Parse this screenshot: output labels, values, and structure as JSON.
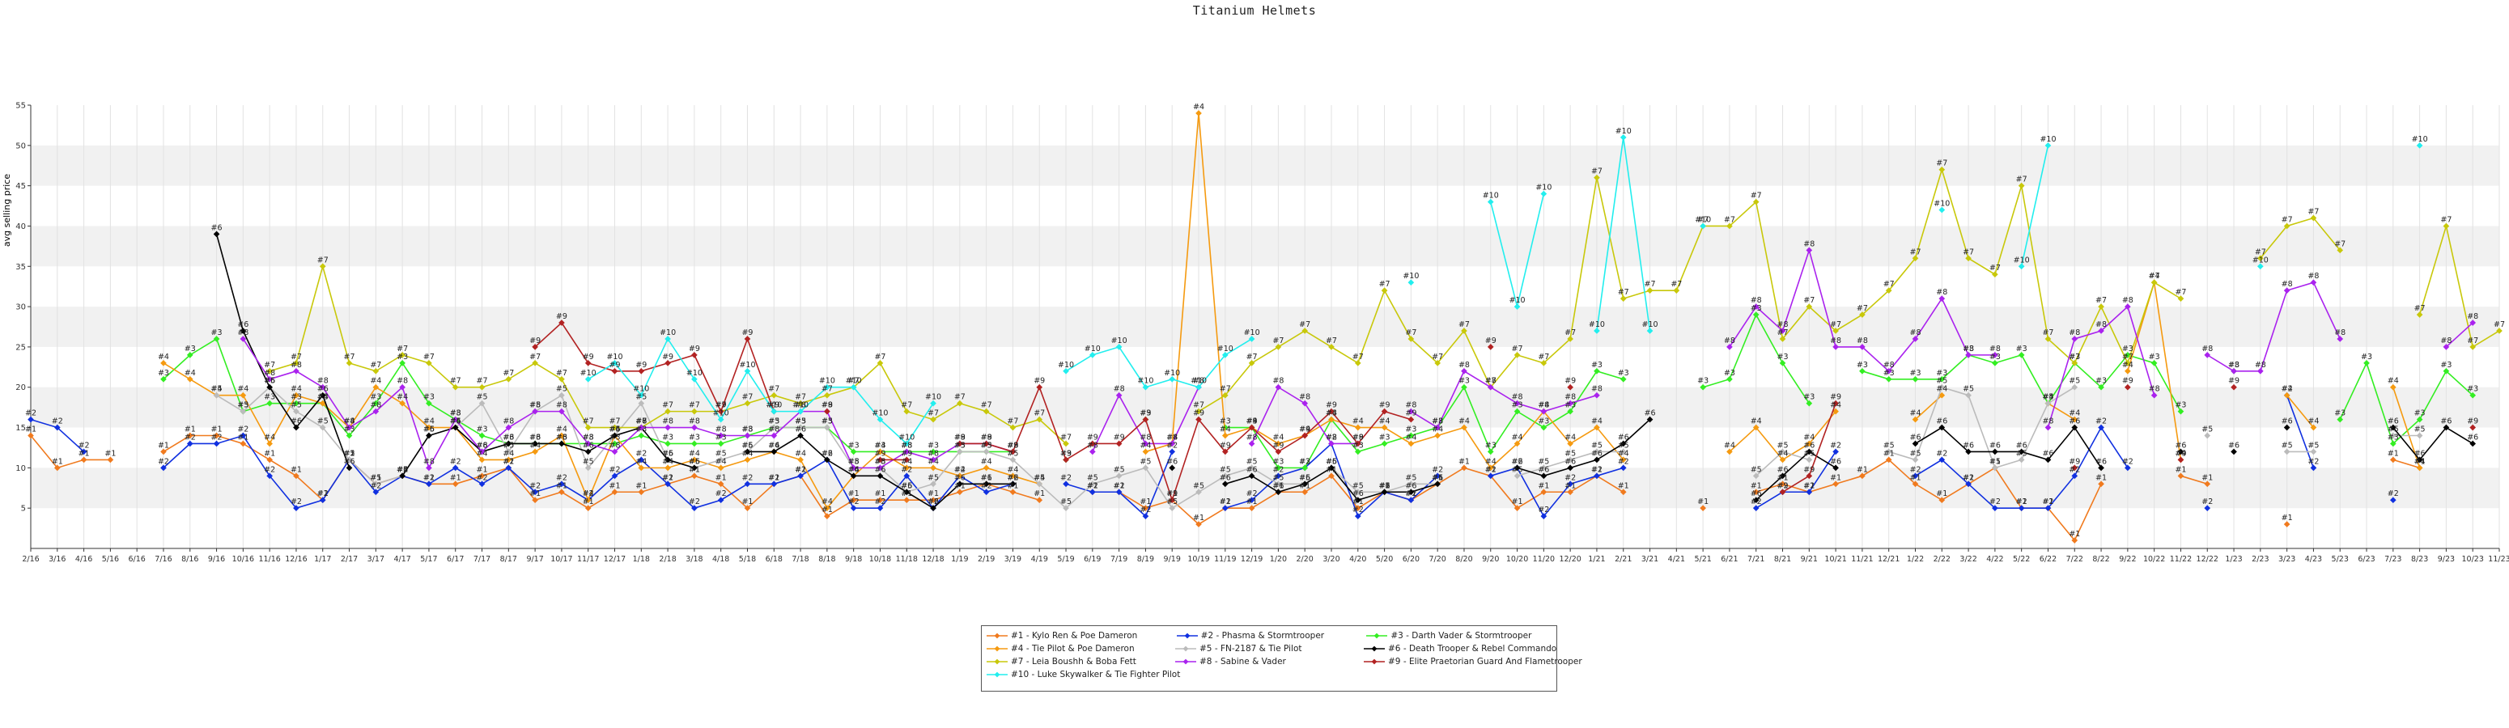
{
  "chart_data": {
    "type": "line",
    "title": "Titanium Helmets",
    "xlabel": "",
    "ylabel": "avg selling price",
    "ylim": [
      0,
      55
    ],
    "yticks": [
      5,
      10,
      15,
      20,
      25,
      30,
      35,
      40,
      45,
      50,
      55
    ],
    "grid": true,
    "legend_position": "bottom",
    "categories": [
      "2/16",
      "3/16",
      "4/16",
      "5/16",
      "6/16",
      "7/16",
      "8/16",
      "9/16",
      "10/16",
      "11/16",
      "12/16",
      "1/17",
      "2/17",
      "3/17",
      "4/17",
      "5/17",
      "6/17",
      "7/17",
      "8/17",
      "9/17",
      "10/17",
      "11/17",
      "12/17",
      "1/18",
      "2/18",
      "3/18",
      "4/18",
      "5/18",
      "6/18",
      "7/18",
      "8/18",
      "9/18",
      "10/18",
      "11/18",
      "12/18",
      "1/19",
      "2/19",
      "3/19",
      "4/19",
      "5/19",
      "6/19",
      "7/19",
      "8/19",
      "9/19",
      "10/19",
      "11/19",
      "12/19",
      "1/20",
      "2/20",
      "3/20",
      "4/20",
      "5/20",
      "6/20",
      "7/20",
      "8/20",
      "9/20",
      "10/20",
      "11/20",
      "12/20",
      "1/21",
      "2/21",
      "3/21",
      "4/21",
      "5/21",
      "6/21",
      "7/21",
      "8/21",
      "9/21",
      "10/21",
      "11/21",
      "12/21",
      "1/22",
      "2/22",
      "3/22",
      "4/22",
      "5/22",
      "6/22",
      "7/22",
      "8/22",
      "9/22",
      "10/22",
      "11/22",
      "12/22",
      "1/23",
      "2/23",
      "3/23",
      "4/23",
      "5/23",
      "6/23",
      "7/23",
      "8/23",
      "9/23",
      "10/23",
      "11/23"
    ],
    "series": [
      {
        "name": "#1 - Kylo Ren & Poe Dameron",
        "label": "#1",
        "color": "#f07a1e",
        "values": [
          14,
          10,
          11,
          11,
          null,
          12,
          14,
          14,
          13,
          11,
          9,
          6,
          11,
          8,
          9,
          8,
          8,
          9,
          10,
          6,
          7,
          5,
          7,
          7,
          8,
          9,
          8,
          5,
          8,
          9,
          4,
          6,
          6,
          6,
          6,
          7,
          8,
          7,
          6,
          null,
          7,
          7,
          5,
          6,
          3,
          5,
          5,
          7,
          7,
          9,
          5,
          7,
          6,
          8,
          10,
          9,
          5,
          7,
          7,
          9,
          7,
          null,
          null,
          5,
          null,
          7,
          8,
          7,
          8,
          9,
          11,
          8,
          6,
          8,
          10,
          5,
          5,
          1,
          8,
          null,
          null,
          9,
          8,
          null,
          null,
          3,
          null,
          null,
          null,
          11,
          10,
          null,
          null,
          null
        ]
      },
      {
        "name": "#2 - Phasma & Stormtrooper",
        "label": "#2",
        "color": "#1030e0",
        "values": [
          16,
          15,
          12,
          null,
          null,
          10,
          13,
          13,
          14,
          9,
          5,
          6,
          11,
          7,
          9,
          8,
          10,
          8,
          10,
          7,
          8,
          6,
          9,
          11,
          8,
          5,
          6,
          8,
          8,
          9,
          11,
          5,
          5,
          9,
          5,
          9,
          7,
          8,
          null,
          8,
          7,
          7,
          4,
          12,
          null,
          5,
          6,
          9,
          10,
          13,
          4,
          7,
          6,
          9,
          null,
          9,
          10,
          4,
          8,
          9,
          10,
          null,
          null,
          null,
          null,
          5,
          7,
          7,
          12,
          null,
          null,
          9,
          11,
          8,
          5,
          5,
          5,
          9,
          15,
          10,
          null,
          null,
          5,
          null,
          null,
          19,
          10,
          null,
          null,
          6,
          null,
          null,
          null,
          null
        ]
      },
      {
        "name": "#3 - Darth Vader & Stormtrooper",
        "label": "#3",
        "color": "#33ee22",
        "values": [
          null,
          null,
          null,
          null,
          null,
          21,
          24,
          26,
          17,
          18,
          18,
          18,
          14,
          18,
          23,
          18,
          16,
          14,
          13,
          13,
          13,
          13,
          13,
          14,
          13,
          13,
          13,
          14,
          15,
          15,
          15,
          12,
          12,
          12,
          12,
          12,
          12,
          12,
          null,
          11,
          null,
          null,
          16,
          null,
          null,
          15,
          15,
          10,
          10,
          16,
          12,
          13,
          14,
          15,
          20,
          12,
          17,
          15,
          17,
          22,
          21,
          null,
          null,
          20,
          21,
          29,
          23,
          18,
          null,
          22,
          21,
          21,
          21,
          24,
          23,
          24,
          18,
          23,
          20,
          24,
          23,
          17,
          null,
          22,
          null,
          null,
          null,
          16,
          23,
          13,
          16,
          22,
          19,
          null
        ]
      },
      {
        "name": "#4 - Tie Pilot & Poe Dameron",
        "label": "#4",
        "color": "#f59a10",
        "values": [
          null,
          null,
          null,
          null,
          null,
          23,
          21,
          19,
          19,
          13,
          19,
          18,
          15,
          20,
          18,
          15,
          15,
          11,
          11,
          12,
          14,
          6,
          14,
          10,
          10,
          11,
          10,
          11,
          12,
          11,
          5,
          9,
          12,
          10,
          10,
          9,
          10,
          9,
          8,
          null,
          null,
          null,
          12,
          13,
          54,
          14,
          15,
          13,
          14,
          16,
          15,
          15,
          13,
          14,
          15,
          10,
          13,
          17,
          13,
          15,
          11,
          null,
          null,
          null,
          12,
          15,
          11,
          13,
          17,
          null,
          null,
          16,
          19,
          null,
          null,
          null,
          18,
          16,
          null,
          22,
          33,
          11,
          null,
          null,
          null,
          19,
          15,
          null,
          null,
          20,
          10,
          null,
          null,
          null
        ]
      },
      {
        "name": "#5 - FN-2187 & Tie Pilot",
        "label": "#5",
        "color": "#bbbbbb",
        "values": [
          null,
          null,
          null,
          null,
          null,
          null,
          null,
          19,
          17,
          20,
          17,
          15,
          11,
          8,
          9,
          14,
          15,
          18,
          12,
          17,
          19,
          10,
          14,
          18,
          11,
          10,
          11,
          12,
          15,
          15,
          15,
          10,
          10,
          7,
          8,
          12,
          12,
          11,
          8,
          5,
          8,
          9,
          10,
          5,
          7,
          9,
          10,
          8,
          8,
          10,
          7,
          7,
          8,
          8,
          null,
          null,
          9,
          10,
          11,
          12,
          12,
          null,
          null,
          null,
          null,
          9,
          12,
          11,
          null,
          null,
          12,
          11,
          20,
          19,
          10,
          11,
          18,
          20,
          null,
          null,
          null,
          null,
          14,
          null,
          null,
          12,
          12,
          null,
          null,
          14,
          14,
          null,
          null,
          null
        ]
      },
      {
        "name": "#6 - Death Trooper & Rebel Commando",
        "label": "#6",
        "color": "#000000",
        "values": [
          null,
          null,
          null,
          null,
          null,
          null,
          null,
          39,
          27,
          20,
          15,
          19,
          10,
          null,
          9,
          14,
          15,
          12,
          13,
          13,
          13,
          12,
          14,
          15,
          11,
          10,
          null,
          12,
          12,
          14,
          11,
          9,
          9,
          7,
          5,
          8,
          8,
          8,
          null,
          null,
          null,
          null,
          null,
          10,
          null,
          8,
          9,
          7,
          8,
          10,
          6,
          7,
          7,
          8,
          null,
          null,
          10,
          9,
          10,
          11,
          13,
          16,
          null,
          null,
          null,
          6,
          9,
          12,
          10,
          null,
          null,
          13,
          15,
          12,
          12,
          12,
          11,
          15,
          10,
          null,
          null,
          12,
          null,
          12,
          null,
          15,
          null,
          null,
          null,
          15,
          11,
          15,
          13,
          null
        ]
      },
      {
        "name": "#7 - Leia Boushh & Boba Fett",
        "label": "#7",
        "color": "#c8c80a",
        "values": [
          null,
          null,
          null,
          null,
          null,
          null,
          null,
          null,
          null,
          22,
          23,
          35,
          23,
          22,
          24,
          23,
          20,
          20,
          21,
          23,
          21,
          15,
          15,
          15,
          17,
          17,
          17,
          18,
          19,
          18,
          19,
          20,
          23,
          17,
          16,
          18,
          17,
          15,
          16,
          13,
          null,
          null,
          null,
          null,
          17,
          19,
          23,
          25,
          27,
          25,
          23,
          32,
          26,
          23,
          27,
          20,
          24,
          23,
          26,
          46,
          31,
          32,
          32,
          40,
          40,
          43,
          26,
          30,
          27,
          29,
          32,
          36,
          47,
          36,
          34,
          45,
          26,
          23,
          30,
          23,
          33,
          31,
          null,
          null,
          36,
          40,
          41,
          37,
          null,
          null,
          29,
          40,
          25,
          27
        ]
      },
      {
        "name": "#8 - Sabine & Vader",
        "label": "#8",
        "color": "#aa22ee",
        "values": [
          null,
          null,
          null,
          null,
          null,
          null,
          null,
          null,
          26,
          21,
          22,
          20,
          15,
          17,
          20,
          10,
          16,
          12,
          15,
          17,
          17,
          13,
          12,
          15,
          15,
          15,
          14,
          14,
          14,
          17,
          17,
          10,
          10,
          12,
          11,
          13,
          13,
          12,
          null,
          null,
          12,
          19,
          13,
          13,
          20,
          null,
          13,
          20,
          18,
          13,
          13,
          null,
          17,
          15,
          22,
          20,
          18,
          17,
          18,
          19,
          null,
          null,
          null,
          null,
          25,
          30,
          27,
          37,
          25,
          25,
          22,
          26,
          31,
          24,
          24,
          null,
          15,
          26,
          27,
          30,
          19,
          null,
          24,
          22,
          22,
          32,
          33,
          26,
          null,
          null,
          null,
          25,
          28,
          null
        ]
      },
      {
        "name": "#9 - Elite Praetorian Guard And Flametrooper",
        "label": "#9",
        "color": "#b22222",
        "values": [
          null,
          null,
          null,
          null,
          null,
          null,
          null,
          null,
          null,
          null,
          null,
          null,
          null,
          null,
          null,
          null,
          null,
          null,
          null,
          25,
          28,
          23,
          22,
          22,
          23,
          24,
          17,
          26,
          17,
          null,
          17,
          null,
          11,
          11,
          null,
          13,
          13,
          12,
          20,
          11,
          13,
          13,
          16,
          6,
          16,
          12,
          15,
          12,
          14,
          17,
          13,
          17,
          16,
          null,
          null,
          25,
          null,
          null,
          20,
          null,
          null,
          null,
          null,
          null,
          null,
          null,
          7,
          9,
          18,
          null,
          null,
          null,
          null,
          null,
          null,
          null,
          null,
          10,
          null,
          20,
          null,
          11,
          null,
          20,
          null,
          null,
          null,
          null,
          null,
          null,
          null,
          null,
          15,
          null
        ]
      },
      {
        "name": "#10 - Luke Skywalker & Tie Fighter Pilot",
        "label": "#10",
        "color": "#22eeee",
        "values": [
          null,
          null,
          null,
          null,
          null,
          null,
          null,
          null,
          null,
          null,
          null,
          null,
          null,
          null,
          null,
          null,
          null,
          null,
          null,
          null,
          null,
          21,
          23,
          19,
          26,
          21,
          16,
          22,
          17,
          17,
          20,
          20,
          16,
          13,
          18,
          null,
          null,
          null,
          null,
          22,
          24,
          25,
          20,
          21,
          20,
          24,
          26,
          null,
          null,
          null,
          null,
          null,
          33,
          null,
          null,
          43,
          30,
          44,
          null,
          27,
          51,
          27,
          null,
          40,
          null,
          null,
          null,
          null,
          null,
          null,
          null,
          null,
          42,
          null,
          null,
          35,
          50,
          null,
          null,
          null,
          null,
          null,
          null,
          null,
          35,
          null,
          null,
          null,
          null,
          null,
          50,
          null,
          null,
          null
        ]
      }
    ]
  }
}
